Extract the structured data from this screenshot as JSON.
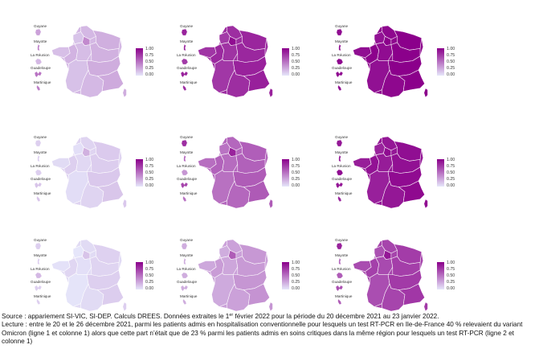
{
  "colors": {
    "low": "#e6e6fa",
    "high": "#8b008b",
    "border": "#ffffff",
    "text": "#111111"
  },
  "territory_labels": {
    "guyane": "Guyane",
    "mayotte": "Mayotte",
    "reunion": "La Réunion",
    "guadeloupe": "Guadeloupe",
    "martinique": "Martinique"
  },
  "legend_ticks": [
    "1.00",
    "0.75",
    "0.50",
    "0.25",
    "0.00"
  ],
  "chart_data": {
    "type": "heatmap",
    "value_range": [
      0,
      1
    ],
    "color_scale": [
      "#e6e6fa",
      "#8b008b"
    ],
    "grid": "3 rows x 3 columns of maps of metropolitan France with overseas territories",
    "panels": [
      {
        "row": 1,
        "col": 1,
        "ile_de_france": 0.4,
        "metro_level": 0.2,
        "guyane": 0.3,
        "mayotte": 0.45,
        "reunion": 0.2,
        "guadeloupe": 0.5,
        "martinique": 0.45
      },
      {
        "row": 1,
        "col": 2,
        "ile_de_france": 0.95,
        "metro_level": 0.8,
        "guyane": 0.85,
        "mayotte": 0.85,
        "reunion": 0.75,
        "guadeloupe": 0.85,
        "martinique": 0.8
      },
      {
        "row": 1,
        "col": 3,
        "ile_de_france": 1.0,
        "metro_level": 0.97,
        "guyane": 0.95,
        "mayotte": 0.95,
        "reunion": 0.97,
        "guadeloupe": 0.95,
        "martinique": 0.95
      },
      {
        "row": 2,
        "col": 1,
        "ile_de_france": 0.23,
        "metro_level": 0.08,
        "guyane": 0.1,
        "mayotte": 0.1,
        "reunion": 0.1,
        "guadeloupe": 0.15,
        "martinique": 0.15
      },
      {
        "row": 2,
        "col": 2,
        "ile_de_france": 0.85,
        "metro_level": 0.55,
        "guyane": 0.8,
        "mayotte": 0.55,
        "reunion": 0.35,
        "guadeloupe": 0.7,
        "martinique": 0.5
      },
      {
        "row": 2,
        "col": 3,
        "ile_de_france": 0.95,
        "metro_level": 0.9,
        "guyane": 0.9,
        "mayotte": 0.9,
        "reunion": 0.95,
        "guadeloupe": 0.9,
        "martinique": 0.85
      },
      {
        "row": 3,
        "col": 1,
        "ile_de_france": 0.15,
        "metro_level": 0.05,
        "guyane": 0.1,
        "mayotte": 0.1,
        "reunion": 0.2,
        "guadeloupe": 0.1,
        "martinique": 0.1
      },
      {
        "row": 3,
        "col": 2,
        "ile_de_france": 0.6,
        "metro_level": 0.3,
        "guyane": 0.25,
        "mayotte": 0.25,
        "reunion": 0.25,
        "guadeloupe": 0.25,
        "martinique": 0.25
      },
      {
        "row": 3,
        "col": 3,
        "ile_de_france": 0.9,
        "metro_level": 0.7,
        "guyane": 0.85,
        "mayotte": 0.55,
        "reunion": 0.6,
        "guadeloupe": 0.65,
        "martinique": 0.6
      }
    ]
  },
  "caption": {
    "source_a": "Source : appariement SI-VIC, SI-DEP. Calculs DREES. Données extraites le 1",
    "source_sup": "er",
    "source_b": " février 2022 pour la période du 20 décembre 2021 au 23 janvier 2022.",
    "lecture": "Lecture : entre le 20 et le 26 décembre 2021, parmi les patients admis en hospitalisation conventionnelle pour lesquels un test RT-PCR en Ile-de-France 40 % relevaient du variant Omicron (ligne 1 et colonne 1) alors que cette part n’était que de 23 % parmi les patients admis en soins critiques dans la même région pour lesquels un test RT-PCR (ligne 2 et colonne 1)"
  }
}
